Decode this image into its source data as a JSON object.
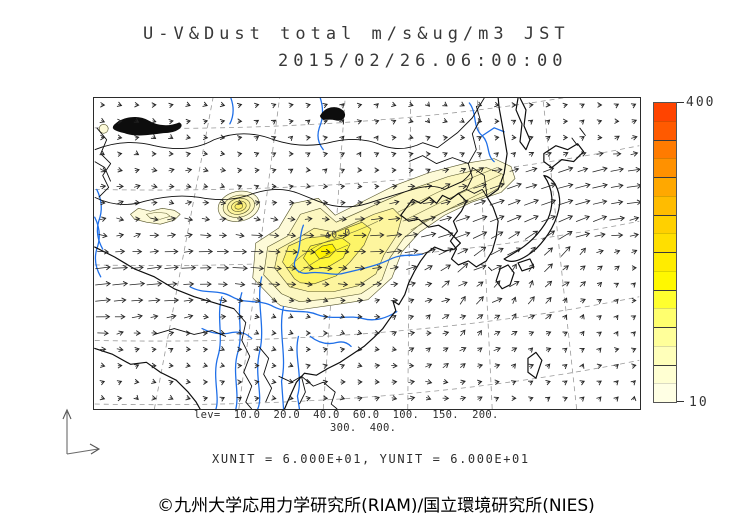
{
  "title": {
    "line1": "U-V&Dust total m/s&ug/m3 JST",
    "line2": "2015/02/26.06:00:00"
  },
  "legend": {
    "lev_line1": "lev=  10.0  20.0  40.0  60.0  100.  150.  200.",
    "lev_line2": "300.  400.",
    "unit_line": "XUNIT = 6.000E+01, YUNIT = 6.000E+01"
  },
  "colorbar": {
    "max_label": "400",
    "min_label": "10",
    "levels": [
      10,
      20,
      40,
      60,
      100,
      150,
      200,
      300,
      400
    ],
    "segment_colors_top_to_bottom": [
      "#ff4400",
      "#ff5a00",
      "#ff7b00",
      "#ff9100",
      "#ffa800",
      "#ffbc00",
      "#ffd000",
      "#ffdf00",
      "#ffec00",
      "#fff800",
      "#ffff2e",
      "#ffff6e",
      "#ffff9a",
      "#ffffba",
      "#ffffd2",
      "#ffffe4"
    ]
  },
  "map": {
    "contour_label": "40.0"
  },
  "footer": {
    "attribution": "©九州大学応用力学研究所(RIAM)/国立環境研究所(NIES)"
  },
  "colors": {
    "river": "#1f6fe8",
    "coast": "#0d0d0d",
    "graticule": "#999999",
    "dust_outer": "#fdfad8",
    "dust_core": "#fff200",
    "colorbar_top": "#ff4400",
    "colorbar_bottom": "#ffffe4"
  },
  "chart_data": {
    "type": "heatmap",
    "subtype": "filled-contour-map-with-wind-vectors",
    "title": "U-V&Dust total m/s&ug/m3 JST",
    "timestamp": "2015/02/26.06:00:00",
    "region": "East Asia (China, Mongolia, Korea, Japan)",
    "contour_levels": [
      10.0,
      20.0,
      40.0,
      60.0,
      100,
      150,
      200,
      300,
      400
    ],
    "colorbar_range": [
      10,
      400
    ],
    "labeled_contour_value": "40.0",
    "units": {
      "wind": "m/s",
      "dust": "ug/m3",
      "time_zone": "JST"
    },
    "vector_scale": {
      "xunit": "6.000E+01",
      "yunit": "6.000E+01"
    },
    "legend_position": "right",
    "notes": "Main dust plume (peak between 60-150 ug/m3) stretches SW-NE from central China across the Korean peninsula; secondary dust source spot in Inner Mongolia; westerly wind jet along the plume axis."
  }
}
